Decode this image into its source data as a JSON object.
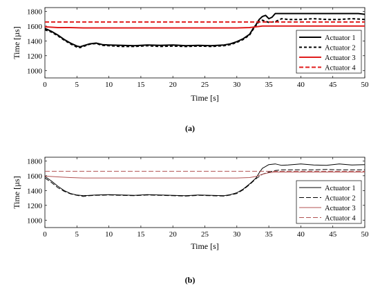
{
  "chart_data": [
    {
      "type": "line",
      "caption": "(a)",
      "xlabel": "Time [s]",
      "ylabel": "Time [µs]",
      "xlim": [
        0,
        50
      ],
      "ylim": [
        900,
        1850
      ],
      "xticks": [
        0,
        5,
        10,
        15,
        20,
        25,
        30,
        35,
        40,
        45,
        50
      ],
      "yticks": [
        1000,
        1200,
        1400,
        1600,
        1800
      ],
      "legend_position": "right",
      "series": [
        {
          "name": "Actuator 1",
          "color": "#000000",
          "dash": "solid",
          "width": 2,
          "x": [
            0,
            1,
            2,
            3,
            4,
            5,
            5.5,
            6,
            7,
            8,
            9,
            10,
            12,
            14,
            16,
            18,
            20,
            22,
            24,
            26,
            28,
            29,
            30,
            31,
            32,
            32.5,
            33,
            33.5,
            34,
            34.5,
            35,
            35.5,
            36,
            37,
            38,
            40,
            42,
            44,
            46,
            48,
            49,
            50
          ],
          "y": [
            1570,
            1530,
            1480,
            1420,
            1370,
            1330,
            1320,
            1335,
            1360,
            1370,
            1350,
            1345,
            1340,
            1335,
            1345,
            1340,
            1345,
            1335,
            1340,
            1335,
            1345,
            1360,
            1390,
            1430,
            1490,
            1560,
            1620,
            1690,
            1730,
            1745,
            1700,
            1720,
            1770,
            1770,
            1770,
            1770,
            1770,
            1770,
            1770,
            1770,
            1770,
            1760
          ]
        },
        {
          "name": "Actuator 2",
          "color": "#000000",
          "dash": "4,3",
          "width": 2,
          "x": [
            0,
            1,
            2,
            3,
            4,
            5,
            5.5,
            6,
            7,
            8,
            9,
            10,
            12,
            14,
            16,
            18,
            20,
            22,
            24,
            26,
            28,
            29,
            30,
            31,
            32,
            32.5,
            33,
            33.5,
            34,
            35,
            36,
            37,
            38,
            40,
            42,
            44,
            46,
            48,
            50
          ],
          "y": [
            1550,
            1520,
            1470,
            1410,
            1360,
            1315,
            1310,
            1325,
            1355,
            1365,
            1340,
            1335,
            1325,
            1325,
            1335,
            1325,
            1330,
            1325,
            1330,
            1325,
            1335,
            1350,
            1380,
            1420,
            1480,
            1550,
            1610,
            1660,
            1680,
            1650,
            1660,
            1700,
            1690,
            1690,
            1700,
            1690,
            1690,
            1700,
            1690
          ]
        },
        {
          "name": "Actuator 3",
          "color": "#e01b1b",
          "dash": "solid",
          "width": 2,
          "x": [
            0,
            2,
            4,
            6,
            10,
            15,
            20,
            25,
            30,
            32,
            33,
            34,
            36,
            40,
            45,
            50
          ],
          "y": [
            1590,
            1580,
            1580,
            1575,
            1575,
            1575,
            1575,
            1575,
            1575,
            1580,
            1590,
            1600,
            1600,
            1600,
            1600,
            1600
          ]
        },
        {
          "name": "Actuator 4",
          "color": "#e01b1b",
          "dash": "6,3",
          "width": 2,
          "x": [
            0,
            50
          ],
          "y": [
            1655,
            1655
          ]
        }
      ]
    },
    {
      "type": "line",
      "caption": "(b)",
      "xlabel": "Time [s]",
      "ylabel": "Time [µs]",
      "xlim": [
        0,
        50
      ],
      "ylim": [
        900,
        1850
      ],
      "xticks": [
        0,
        5,
        10,
        15,
        20,
        25,
        30,
        35,
        40,
        45,
        50
      ],
      "yticks": [
        1000,
        1200,
        1400,
        1600,
        1800
      ],
      "legend_position": "right",
      "series": [
        {
          "name": "Actuator 1",
          "color": "#000000",
          "dash": "solid",
          "width": 1,
          "x": [
            0,
            1,
            2,
            3,
            4,
            5,
            6,
            7,
            8,
            10,
            12,
            14,
            16,
            18,
            20,
            22,
            24,
            26,
            28,
            29,
            30,
            31,
            32,
            33,
            33.5,
            34,
            35,
            36,
            37,
            38,
            40,
            42,
            44,
            46,
            48,
            50
          ],
          "y": [
            1590,
            1530,
            1460,
            1400,
            1360,
            1340,
            1330,
            1335,
            1340,
            1345,
            1340,
            1335,
            1345,
            1340,
            1335,
            1330,
            1340,
            1335,
            1330,
            1345,
            1370,
            1420,
            1490,
            1570,
            1640,
            1700,
            1750,
            1760,
            1740,
            1745,
            1760,
            1745,
            1740,
            1760,
            1745,
            1750
          ]
        },
        {
          "name": "Actuator 2",
          "color": "#000000",
          "dash": "7,3",
          "width": 1,
          "x": [
            0,
            1,
            2,
            3,
            4,
            5,
            6,
            7,
            8,
            10,
            12,
            14,
            16,
            18,
            20,
            22,
            24,
            26,
            28,
            29,
            30,
            31,
            32,
            33,
            34,
            35,
            36,
            37,
            38,
            40,
            42,
            44,
            46,
            48,
            50
          ],
          "y": [
            1570,
            1510,
            1440,
            1390,
            1355,
            1335,
            1320,
            1330,
            1335,
            1340,
            1335,
            1330,
            1340,
            1335,
            1330,
            1325,
            1335,
            1330,
            1325,
            1340,
            1360,
            1410,
            1480,
            1560,
            1620,
            1650,
            1670,
            1680,
            1680,
            1680,
            1680,
            1685,
            1680,
            1680,
            1680
          ]
        },
        {
          "name": "Actuator 3",
          "color": "#b05050",
          "dash": "solid",
          "width": 1,
          "x": [
            0,
            2,
            4,
            6,
            10,
            15,
            20,
            25,
            30,
            32,
            33,
            34,
            35,
            36,
            40,
            45,
            50
          ],
          "y": [
            1595,
            1585,
            1575,
            1570,
            1570,
            1570,
            1570,
            1570,
            1570,
            1575,
            1590,
            1620,
            1640,
            1650,
            1650,
            1650,
            1650
          ]
        },
        {
          "name": "Actuator 4",
          "color": "#b05050",
          "dash": "7,3",
          "width": 1,
          "x": [
            0,
            50
          ],
          "y": [
            1660,
            1660
          ]
        }
      ]
    }
  ]
}
